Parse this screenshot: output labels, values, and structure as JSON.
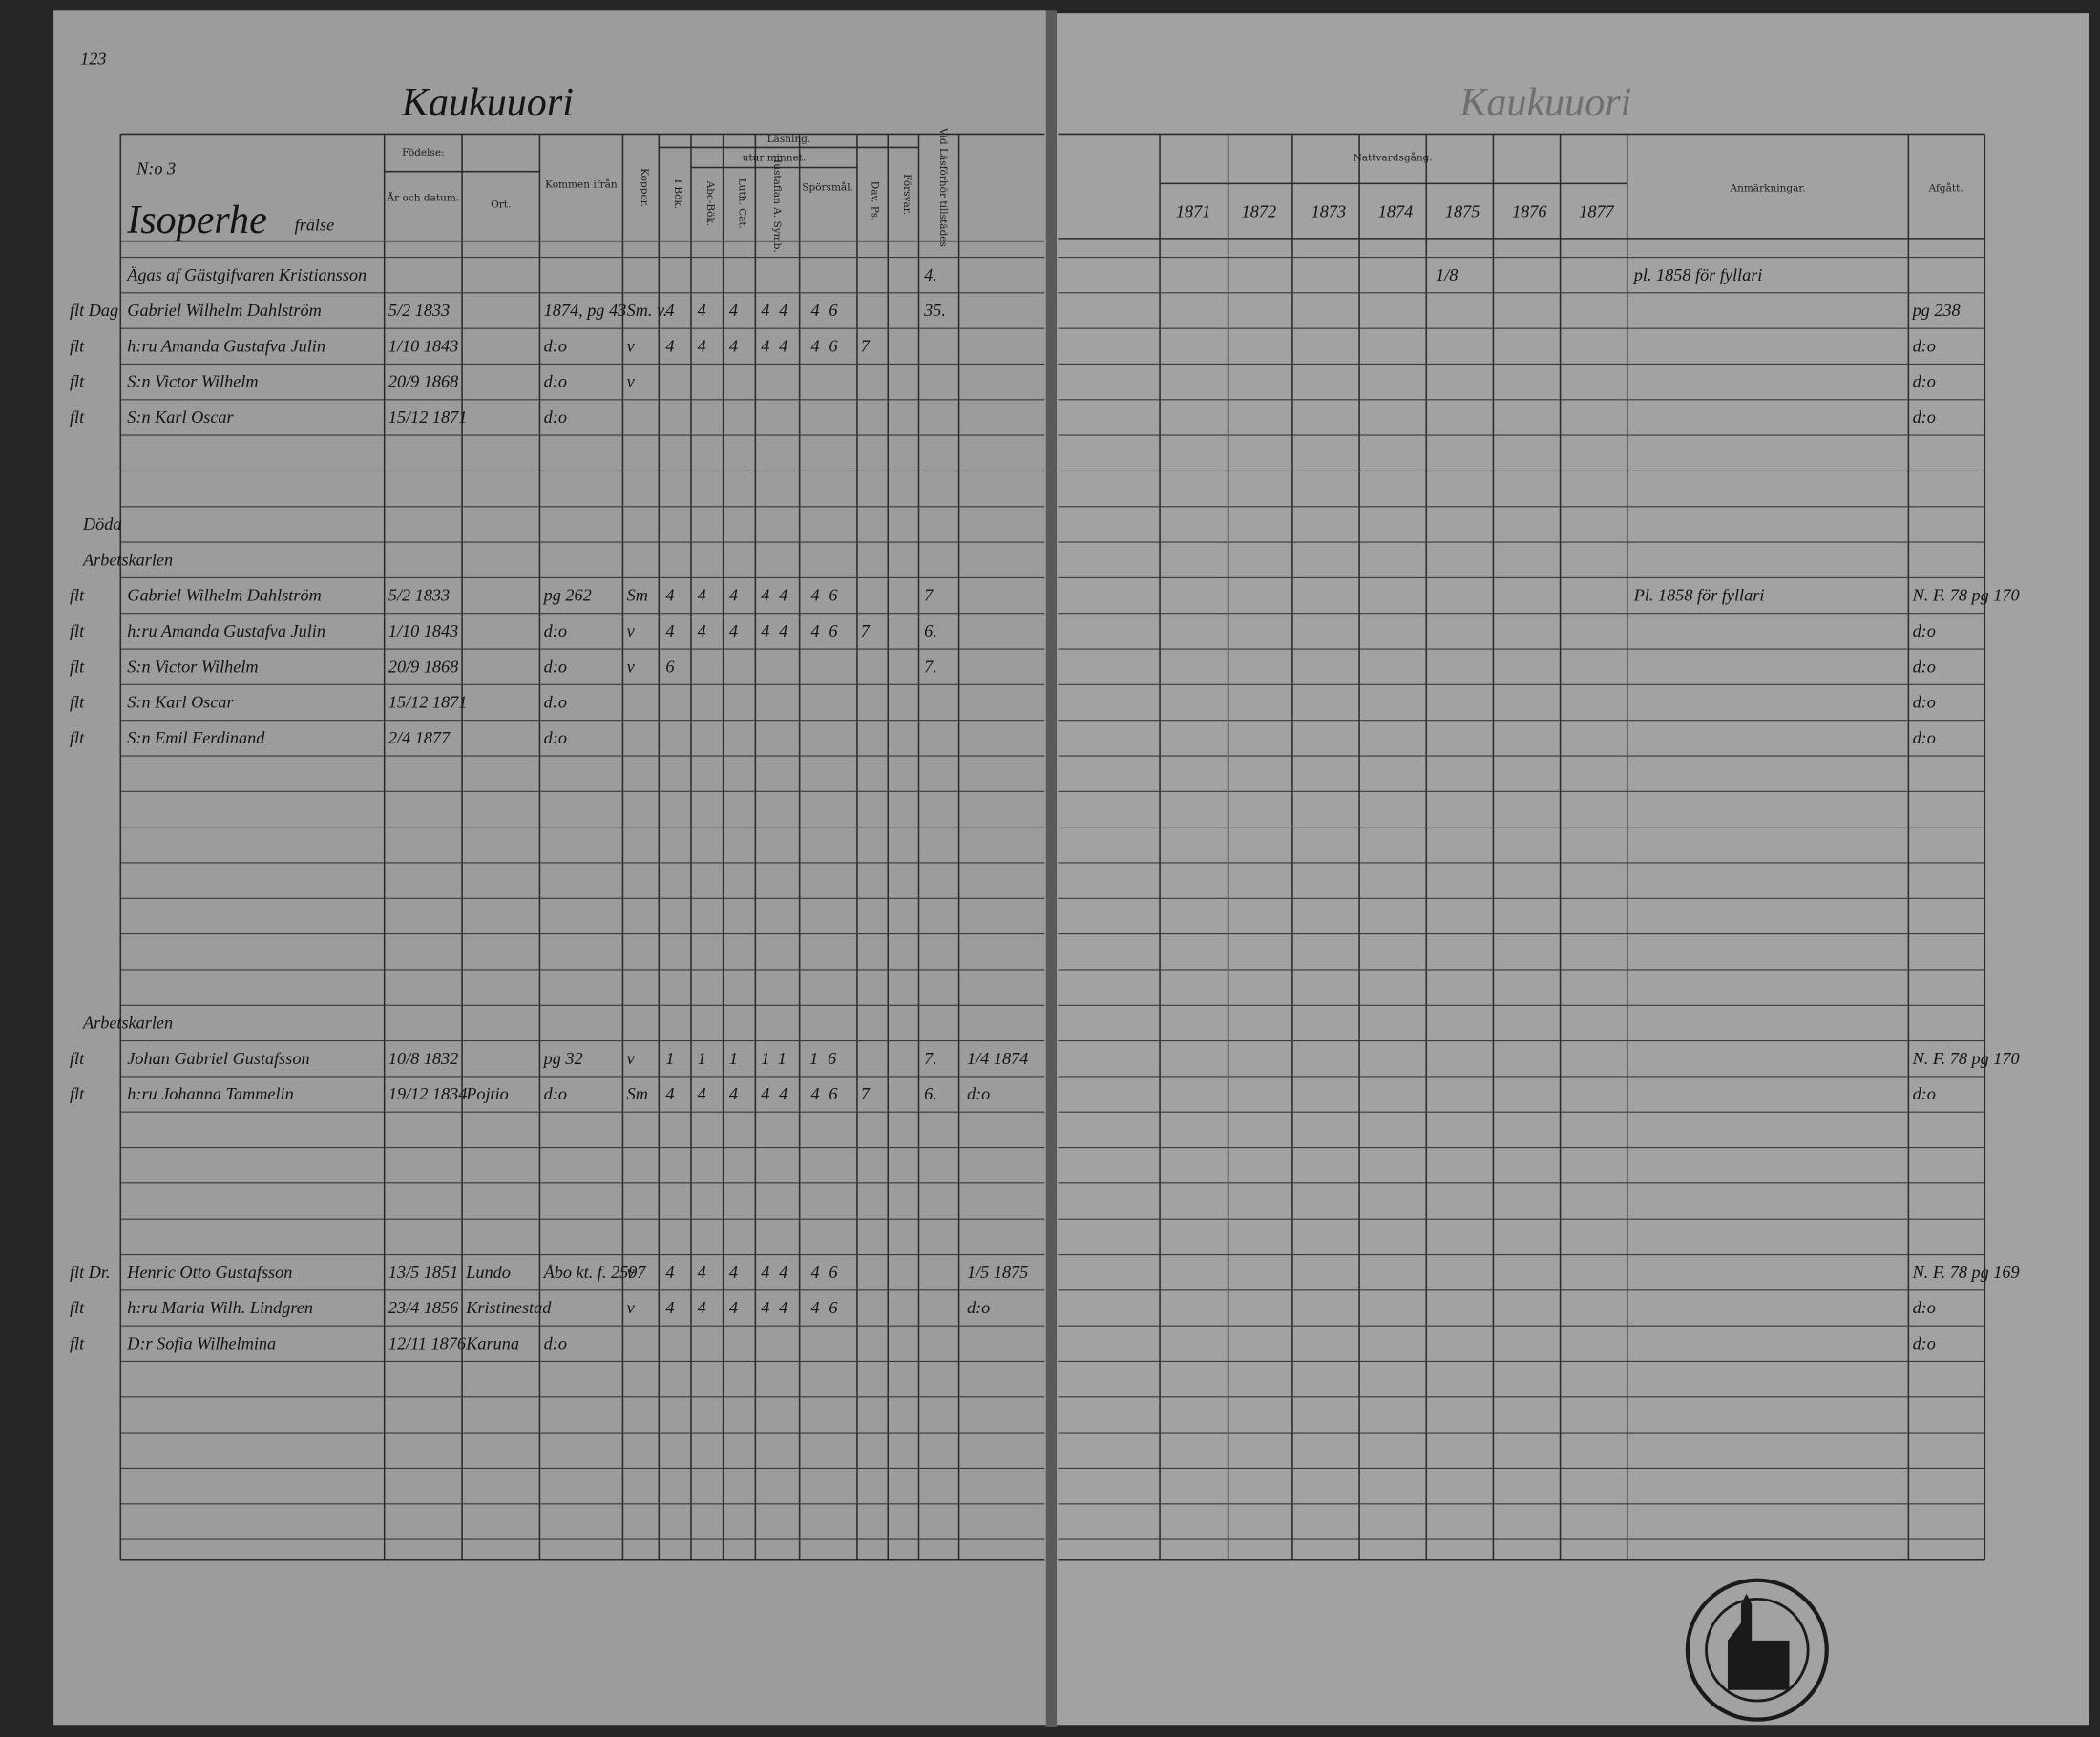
{
  "left_page": {
    "page_number": "123",
    "place": "Kaukuuori",
    "household_no": "N:o 3",
    "farm": "Isoperhe",
    "farm_note": "frälse"
  },
  "right_page": {
    "place": "Kaukuuori"
  },
  "headers": {
    "fodelse": "Födelse:",
    "ar_datum": "År och datum.",
    "ort": "Ort.",
    "kommen": "Kommen ifrån",
    "koppor": "Koppor.",
    "lasning": "Läsning.",
    "utur_minnet": "utur minnet.",
    "i_bok": "I Bök.",
    "abc_bok": "Abc-Bök.",
    "luth_cat": "Luth. Cat.",
    "hustaflan": "Hustaflan A. Symb.",
    "sporsmal": "Spörsmål.",
    "dav_ps": "Dav. Ps.",
    "forsvar": "Försvar.",
    "vid_lasforhor": "Vid Läsförhör tillstädes",
    "nattvardsgang": "Nattvardsgång.",
    "years": [
      "1871",
      "1872",
      "1873",
      "1874",
      "1875",
      "1876",
      "1877"
    ],
    "anmarkningar": "Anmärkningar.",
    "afgatt": "Afgått."
  },
  "rows": [
    {
      "name": "Ägas af Gästgifvaren Kristiansson",
      "vid": "4.",
      "natt_1875": "1/8",
      "anm": "pl. 1858 för fyllari"
    },
    {
      "prefix": "flt Dag",
      "name": "Gabriel Wilhelm Dahlström",
      "birth": "5/2 1833",
      "from": "1874, pg 43",
      "kopp": "Sm. v.",
      "reading": "4 4 4 44 46",
      "vid": "35.",
      "afgatt": "pg 238"
    },
    {
      "prefix": "flt",
      "name": "h:ru Amanda Gustafva Julin",
      "birth": "1/10 1843",
      "from": "d:o",
      "kopp": "v",
      "reading": "4 4 4 44 46 7",
      "afgatt": "d:o"
    },
    {
      "prefix": "flt",
      "name": "S:n Victor Wilhelm",
      "birth": "20/9 1868",
      "from": "d:o",
      "kopp": "v",
      "afgatt": "d:o"
    },
    {
      "prefix": "flt",
      "name": "S:n Karl Oscar",
      "birth": "15/12 1871",
      "from": "d:o",
      "afgatt": "d:o"
    },
    {
      "heading": "Döda"
    },
    {
      "heading": "Arbetskarlen"
    },
    {
      "prefix": "flt",
      "name": "Gabriel Wilhelm Dahlström",
      "birth": "5/2 1833",
      "from": "pg 262",
      "kopp": "Sm",
      "reading": "4 4 4 44 46",
      "vid": "7",
      "anm": "Pl. 1858 för fyllari",
      "afgatt": "N. F. 78 pg 170"
    },
    {
      "prefix": "flt",
      "name": "h:ru Amanda Gustafva Julin",
      "birth": "1/10 1843",
      "from": "d:o",
      "kopp": "v",
      "reading": "4 4 4 44 46 7",
      "vid": "6.",
      "afgatt": "d:o"
    },
    {
      "prefix": "flt",
      "name": "S:n Victor Wilhelm",
      "birth": "20/9 1868",
      "from": "d:o",
      "kopp": "v",
      "reading": "6",
      "vid": "7.",
      "afgatt": "d:o"
    },
    {
      "prefix": "flt",
      "name": "S:n Karl Oscar",
      "birth": "15/12 1871",
      "from": "d:o",
      "afgatt": "d:o"
    },
    {
      "prefix": "flt",
      "name": "S:n Emil Ferdinand",
      "birth": "2/4 1877",
      "from": "d:o",
      "afgatt": "d:o"
    },
    {
      "heading": "Arbetskarlen"
    },
    {
      "prefix": "flt",
      "name": "Johan Gabriel Gustafsson",
      "birth": "10/8 1832",
      "from": "pg 32",
      "kopp": "v",
      "reading": "1 1 1 11 16",
      "vid": "7.",
      "natt": "1/4 1874",
      "afgatt": "N. F. 78 pg 170"
    },
    {
      "prefix": "flt",
      "name": "h:ru Johanna Tammelin",
      "birth": "19/12 1834",
      "place": "Pojtio",
      "from": "d:o",
      "kopp": "Sm",
      "reading": "4 4 4 44 46 7",
      "vid": "6.",
      "natt": "d:o",
      "afgatt": "d:o"
    },
    {
      "prefix": "flt Dr.",
      "name": "Henric Otto Gustafsson",
      "birth": "13/5 1851",
      "place": "Lundo",
      "from": "Åbo kt. f. 2597",
      "kopp": "v",
      "reading": "4 4 4 44 46",
      "natt": "1/5 1875",
      "afgatt": "N. F. 78 pg 169"
    },
    {
      "prefix": "flt",
      "name": "h:ru Maria Wilh. Lindgren",
      "birth": "23/4 1856",
      "place": "Kristinestad",
      "kopp": "v",
      "reading": "4 4 4 44 46",
      "natt": "d:o",
      "afgatt": "d:o"
    },
    {
      "prefix": "flt",
      "name": "D:r Sofia Wilhelmina",
      "birth": "12/11 1876",
      "place": "Karuna",
      "from": "d:o",
      "afgatt": "d:o"
    }
  ]
}
